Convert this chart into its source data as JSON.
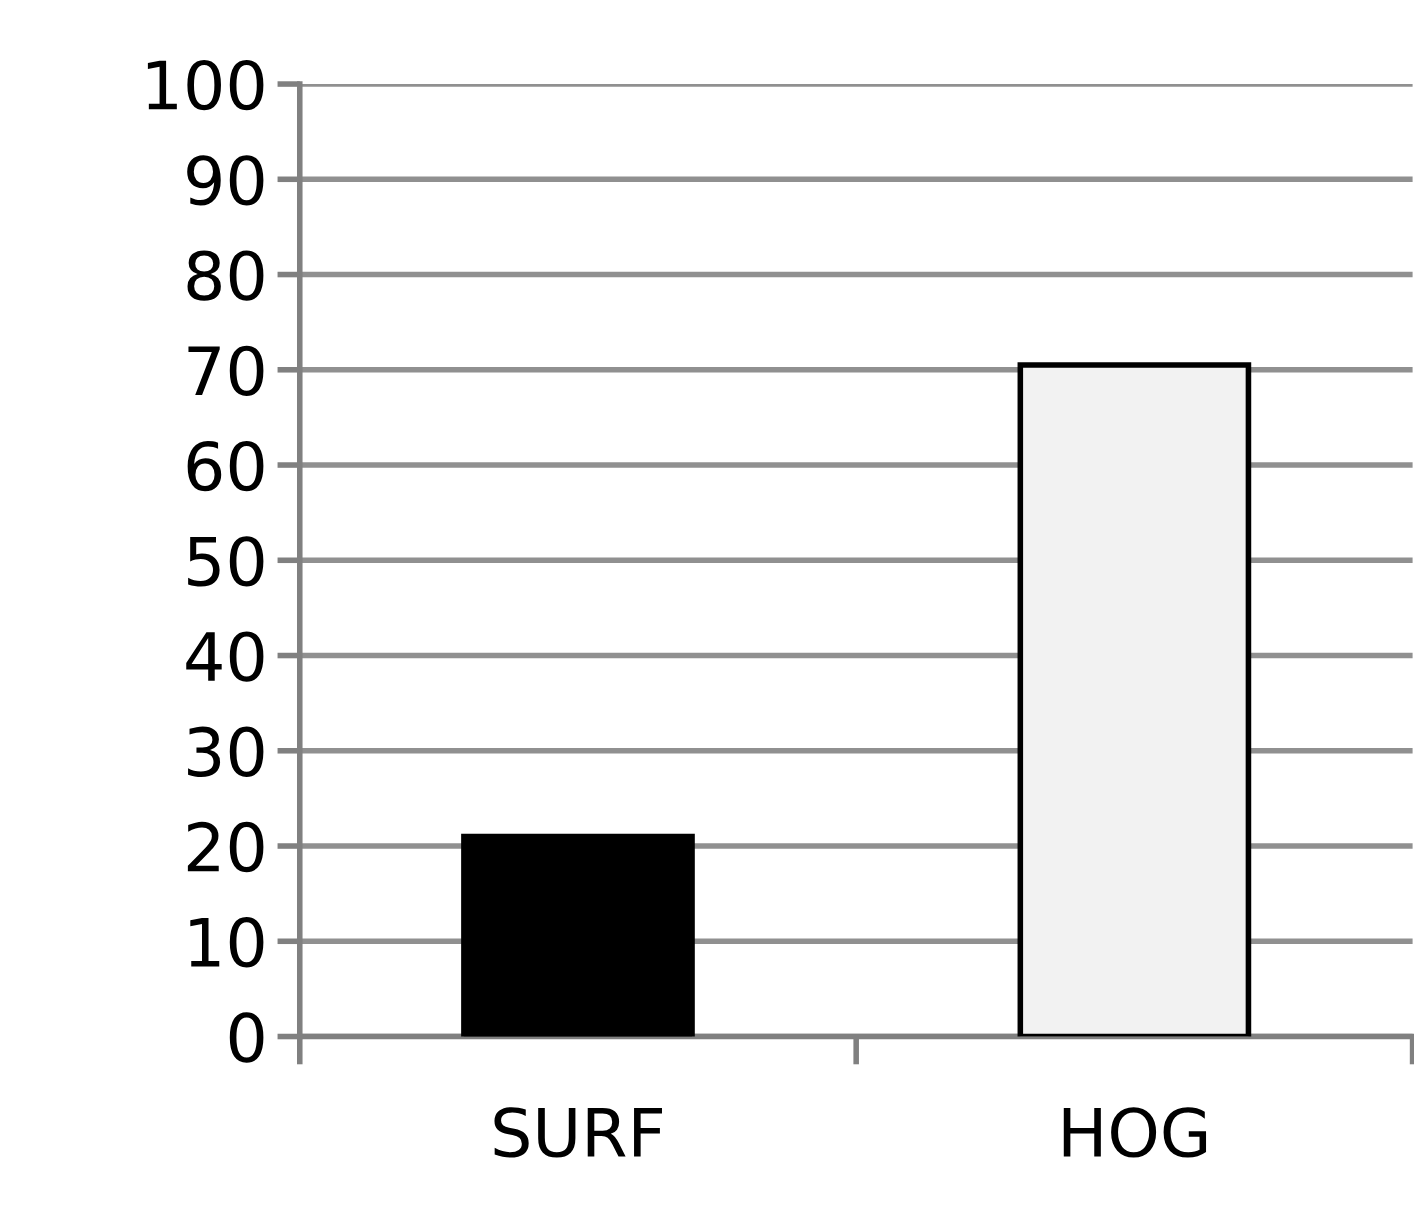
{
  "chart_data": {
    "type": "bar",
    "categories": [
      "SURF",
      "HOG"
    ],
    "values": [
      21,
      70.5
    ],
    "colors": [
      "#000000",
      "#f2f2f2"
    ],
    "ylim": [
      0,
      100
    ],
    "yticks": [
      0,
      10,
      20,
      30,
      40,
      50,
      60,
      70,
      80,
      90,
      100
    ],
    "grid": "y"
  }
}
